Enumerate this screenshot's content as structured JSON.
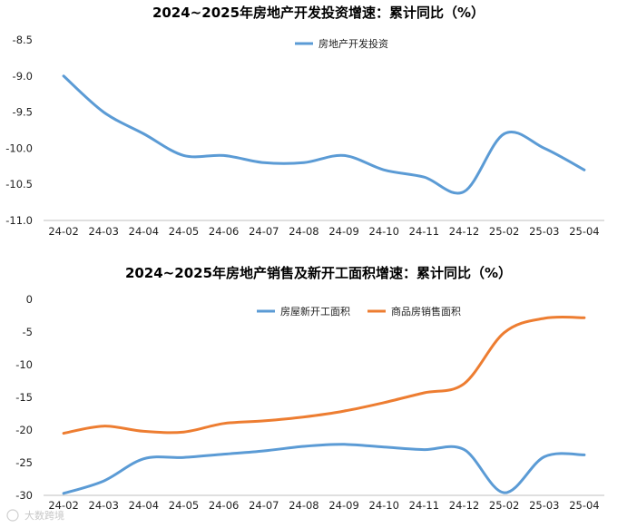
{
  "colors": {
    "blue": "#5b9bd5",
    "orange": "#ed7d31",
    "axis": "#bfbfbf"
  },
  "watermark": "大数跨境",
  "chart_data": [
    {
      "type": "line",
      "title": "2024~2025年房地产开发投资增速：累计同比（%）",
      "categories": [
        "24-02",
        "24-03",
        "24-04",
        "24-05",
        "24-06",
        "24-07",
        "24-08",
        "24-09",
        "24-10",
        "24-11",
        "24-12",
        "25-02",
        "25-03",
        "25-04"
      ],
      "yticks": [
        "-8.5",
        "-9.0",
        "-9.5",
        "-10.0",
        "-10.5",
        "-11.0"
      ],
      "ylim": [
        -11.0,
        -8.5
      ],
      "legend": "top-center",
      "grid": false,
      "series": [
        {
          "name": "房地产开发投资",
          "color": "#5b9bd5",
          "values": [
            -9.0,
            -9.5,
            -9.8,
            -10.1,
            -10.1,
            -10.2,
            -10.2,
            -10.1,
            -10.3,
            -10.4,
            -10.6,
            -9.8,
            -10.0,
            -10.3
          ]
        }
      ]
    },
    {
      "type": "line",
      "title": "2024~2025年房地产销售及新开工面积增速：累计同比（%）",
      "categories": [
        "24-02",
        "24-03",
        "24-04",
        "24-05",
        "24-06",
        "24-07",
        "24-08",
        "24-09",
        "24-10",
        "24-11",
        "24-12",
        "25-02",
        "25-03",
        "25-04"
      ],
      "yticks": [
        "0",
        "-5",
        "-10",
        "-15",
        "-20",
        "-25",
        "-30"
      ],
      "ylim": [
        -30,
        0
      ],
      "legend": "top-right",
      "grid": false,
      "series": [
        {
          "name": "房屋新开工面积",
          "color": "#5b9bd5",
          "values": [
            -29.7,
            -27.8,
            -24.4,
            -24.2,
            -23.7,
            -23.2,
            -22.5,
            -22.2,
            -22.6,
            -23.0,
            -23.0,
            -29.6,
            -24.1,
            -23.8
          ]
        },
        {
          "name": "商品房销售面积",
          "color": "#ed7d31",
          "values": [
            -20.5,
            -19.4,
            -20.2,
            -20.3,
            -19.0,
            -18.6,
            -18.0,
            -17.1,
            -15.8,
            -14.3,
            -12.9,
            -5.1,
            -2.9,
            -2.8
          ]
        }
      ]
    }
  ]
}
